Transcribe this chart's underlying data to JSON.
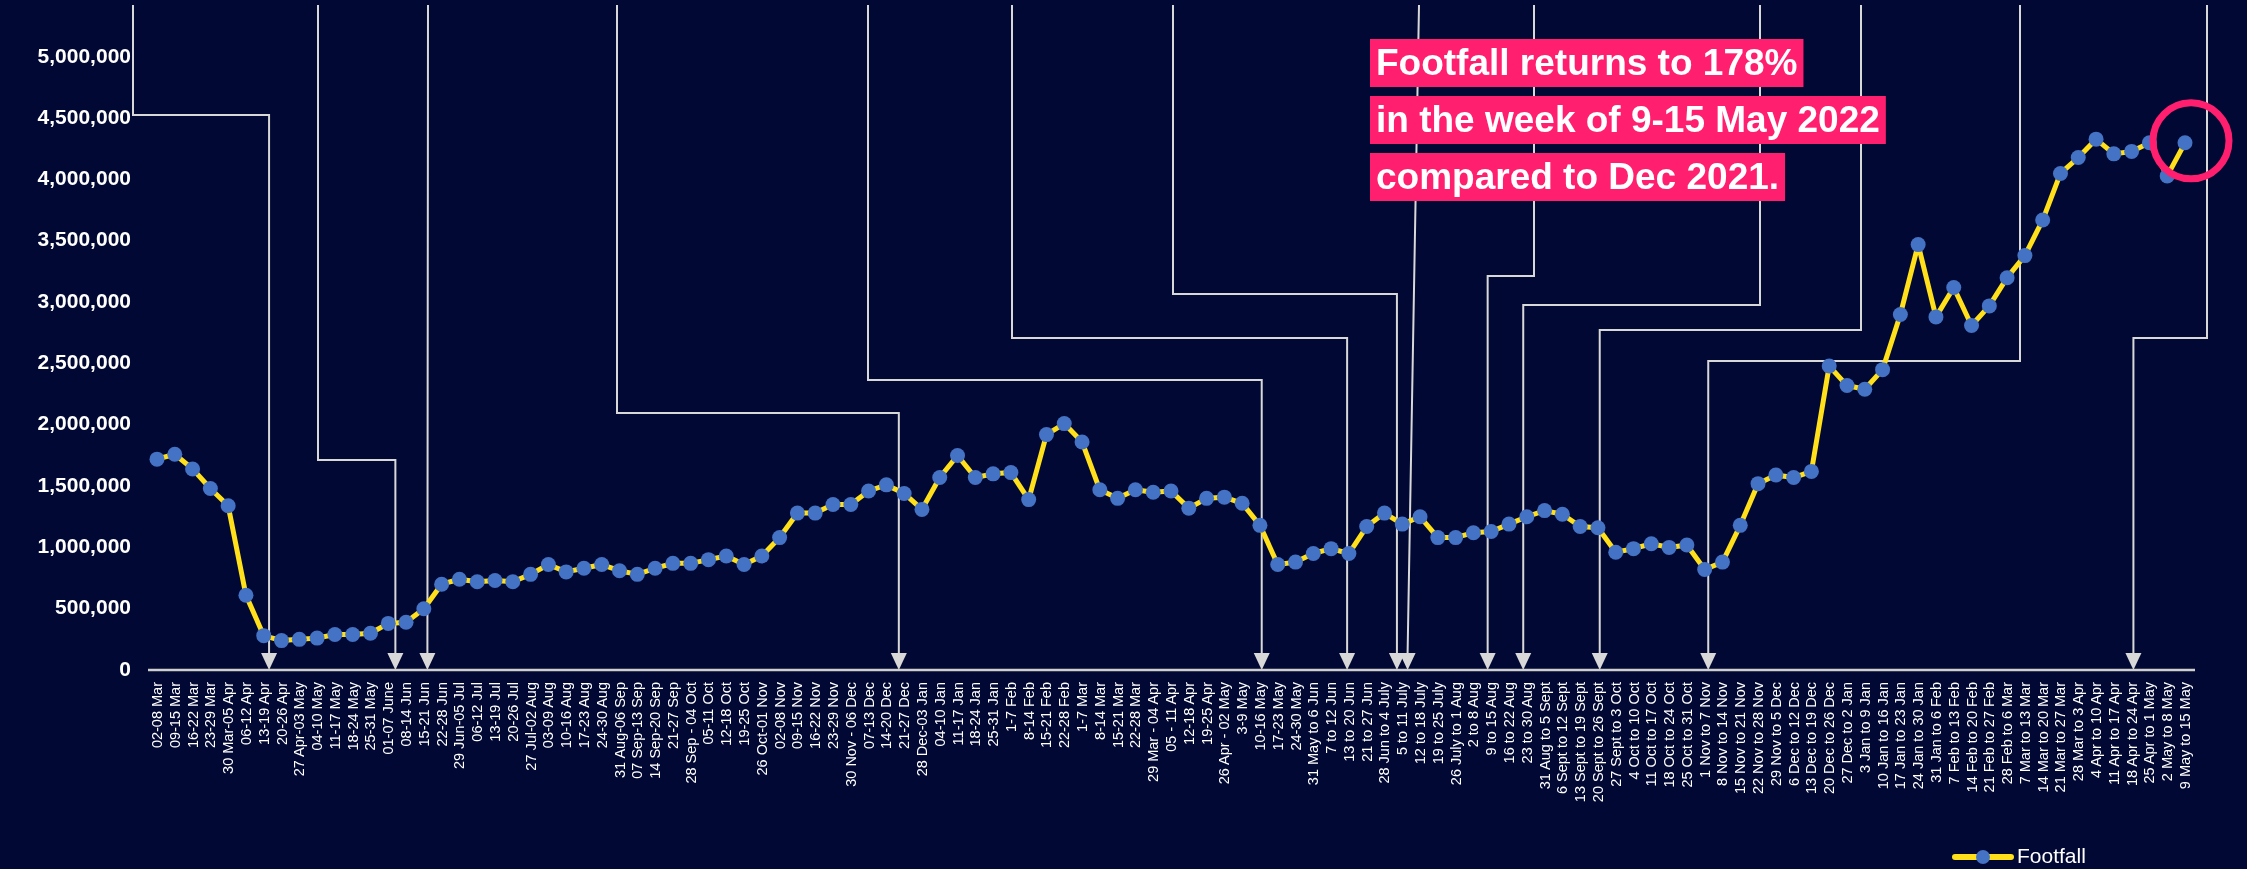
{
  "chart_data": {
    "type": "line",
    "categories": [
      "02-08 Mar",
      "09-15 Mar",
      "16-22 Mar",
      "23-29 Mar",
      "30 Mar-05 Apr",
      "06-12 Apr",
      "13-19 Apr",
      "20-26 Apr",
      "27 Apr-03 May",
      "04-10 May",
      "11-17 May",
      "18-24 May",
      "25-31 May",
      "01-07 June",
      "08-14 Jun",
      "15-21 Jun",
      "22-28 Jun",
      "29 Jun-05 Jul",
      "06-12 Jul",
      "13-19 Jul",
      "20-26 Jul",
      "27 Jul-02 Aug",
      "03-09 Aug",
      "10-16 Aug",
      "17-23 Aug",
      "24-30 Aug",
      "31 Aug-06 Sep",
      "07 Sep-13 Sep",
      "14 Sep-20 Sep",
      "21-27 Sep",
      "28 Sep - 04 Oct",
      "05-11 Oct",
      "12-18 Oct",
      "19-25 Oct",
      "26 Oct-01 Nov",
      "02-08 Nov",
      "09-15 Nov",
      "16-22 Nov",
      "23-29 Nov",
      "30 Nov - 06 Dec",
      "07-13 Dec",
      "14-20 Dec",
      "21-27 Dec",
      "28 Dec-03 Jan",
      "04-10 Jan",
      "11-17 Jan",
      "18-24 Jan",
      "25-31 Jan",
      "1-7 Feb",
      "8-14 Feb",
      "15-21 Feb",
      "22-28 Feb",
      "1-7 Mar",
      "8-14 Mar",
      "15-21 Mar",
      "22-28 Mar",
      "29 Mar - 04 Apr",
      "05 - 11 Apr",
      "12-18 Apr",
      "19-25 Apr",
      "26 Apr - 02 May",
      "3-9 May",
      "10-16 May",
      "17-23 May",
      "24-30 May",
      "31 May to 6 Jun",
      "7 to 12 Jun",
      "13 to 20 Jun",
      "21 to 27 Jun",
      "28 Jun to 4 July",
      "5 to 11 July",
      "12 to 18 July",
      "19 to 25 July",
      "26 July to 1 Aug",
      "2 to 8 Aug",
      "9 to 15 Aug",
      "16 to 22 Aug",
      "23 to 30 Aug",
      "31 Aug to 5 Sept",
      "6 Sept to 12 Sept",
      "13 Sept to 19 Sept",
      "20 Sept to 26 Sept",
      "27 Sept to 3 Oct",
      "4 Oct to 10 Oct",
      "11 Oct to 17 Oct",
      "18 Oct to 24 Oct",
      "25 Oct to 31 Oct",
      "1 Nov to 7 Nov",
      "8 Nov to 14 Nov",
      "15 Nov to 21 Nov",
      "22 Nov to 28 Nov",
      "29 Nov to 5 Dec",
      "6 Dec to 12 Dec",
      "13 Dec to 19 Dec",
      "20 Dec to 26 Dec",
      "27 Dec to 2 Jan",
      "3 Jan to 9 Jan",
      "10 Jan to 16 Jan",
      "17 Jan to 23 Jan",
      "24 Jan to 30 Jan",
      "31 Jan to 6 Feb",
      "7 Feb to 13 Feb",
      "14 Feb to 20 Feb",
      "21 Feb to 27 Feb",
      "28 Feb to 6 Mar",
      "7 Mar to 13 Mar",
      "14 Mar to 20 Mar",
      "21 Mar to 27 Mar",
      "28 Mar to 3 Apr",
      "4 Apr to 10 Apr",
      "11 Apr to 17 Apr",
      "18 Apr to 24 Apr",
      "25 Apr to 1 May",
      "2 May to 8 May",
      "9 May to 15 May"
    ],
    "series": [
      {
        "name": "Footfall",
        "color": "#ffe01b",
        "values": [
          1720000,
          1760000,
          1640000,
          1480000,
          1340000,
          610000,
          280000,
          240000,
          250000,
          260000,
          290000,
          290000,
          300000,
          380000,
          390000,
          500000,
          700000,
          740000,
          720000,
          730000,
          720000,
          780000,
          860000,
          800000,
          830000,
          860000,
          810000,
          780000,
          830000,
          870000,
          870000,
          900000,
          930000,
          860000,
          930000,
          1080000,
          1280000,
          1280000,
          1350000,
          1350000,
          1460000,
          1510000,
          1440000,
          1310000,
          1570000,
          1750000,
          1570000,
          1600000,
          1610000,
          1390000,
          1920000,
          2010000,
          1860000,
          1470000,
          1400000,
          1470000,
          1450000,
          1460000,
          1320000,
          1400000,
          1410000,
          1360000,
          1180000,
          860000,
          880000,
          950000,
          990000,
          950000,
          1170000,
          1280000,
          1190000,
          1250000,
          1080000,
          1080000,
          1120000,
          1130000,
          1190000,
          1250000,
          1300000,
          1270000,
          1170000,
          1160000,
          960000,
          990000,
          1030000,
          1000000,
          1020000,
          820000,
          880000,
          1180000,
          1520000,
          1590000,
          1570000,
          1620000,
          2480000,
          2320000,
          2290000,
          2450000,
          2900000,
          3470000,
          2880000,
          3120000,
          2810000,
          2970000,
          3200000,
          3380000,
          3670000,
          4050000,
          4180000,
          4330000,
          4210000,
          4230000,
          4300000,
          4030000,
          4300000
        ]
      }
    ],
    "ylim": [
      0,
      5000000
    ],
    "yticks": [
      {
        "value": 0,
        "label": "0"
      },
      {
        "value": 500000,
        "label": "500,000"
      },
      {
        "value": 1000000,
        "label": "1,000,000"
      },
      {
        "value": 1500000,
        "label": "1,500,000"
      },
      {
        "value": 2000000,
        "label": "2,000,000"
      },
      {
        "value": 2500000,
        "label": "2,500,000"
      },
      {
        "value": 3000000,
        "label": "3,000,000"
      },
      {
        "value": 3500000,
        "label": "3,500,000"
      },
      {
        "value": 4000000,
        "label": "4,000,000"
      },
      {
        "value": 4500000,
        "label": "4,500,000"
      },
      {
        "value": 5000000,
        "label": "5,000,000"
      }
    ],
    "annotations": [
      "Footfall returns to 178%\nin the week of 9-15 May 2022\ncompared to Dec 2021."
    ],
    "marker": "circle",
    "line_style": "solid",
    "legend": "bottom right"
  }
}
